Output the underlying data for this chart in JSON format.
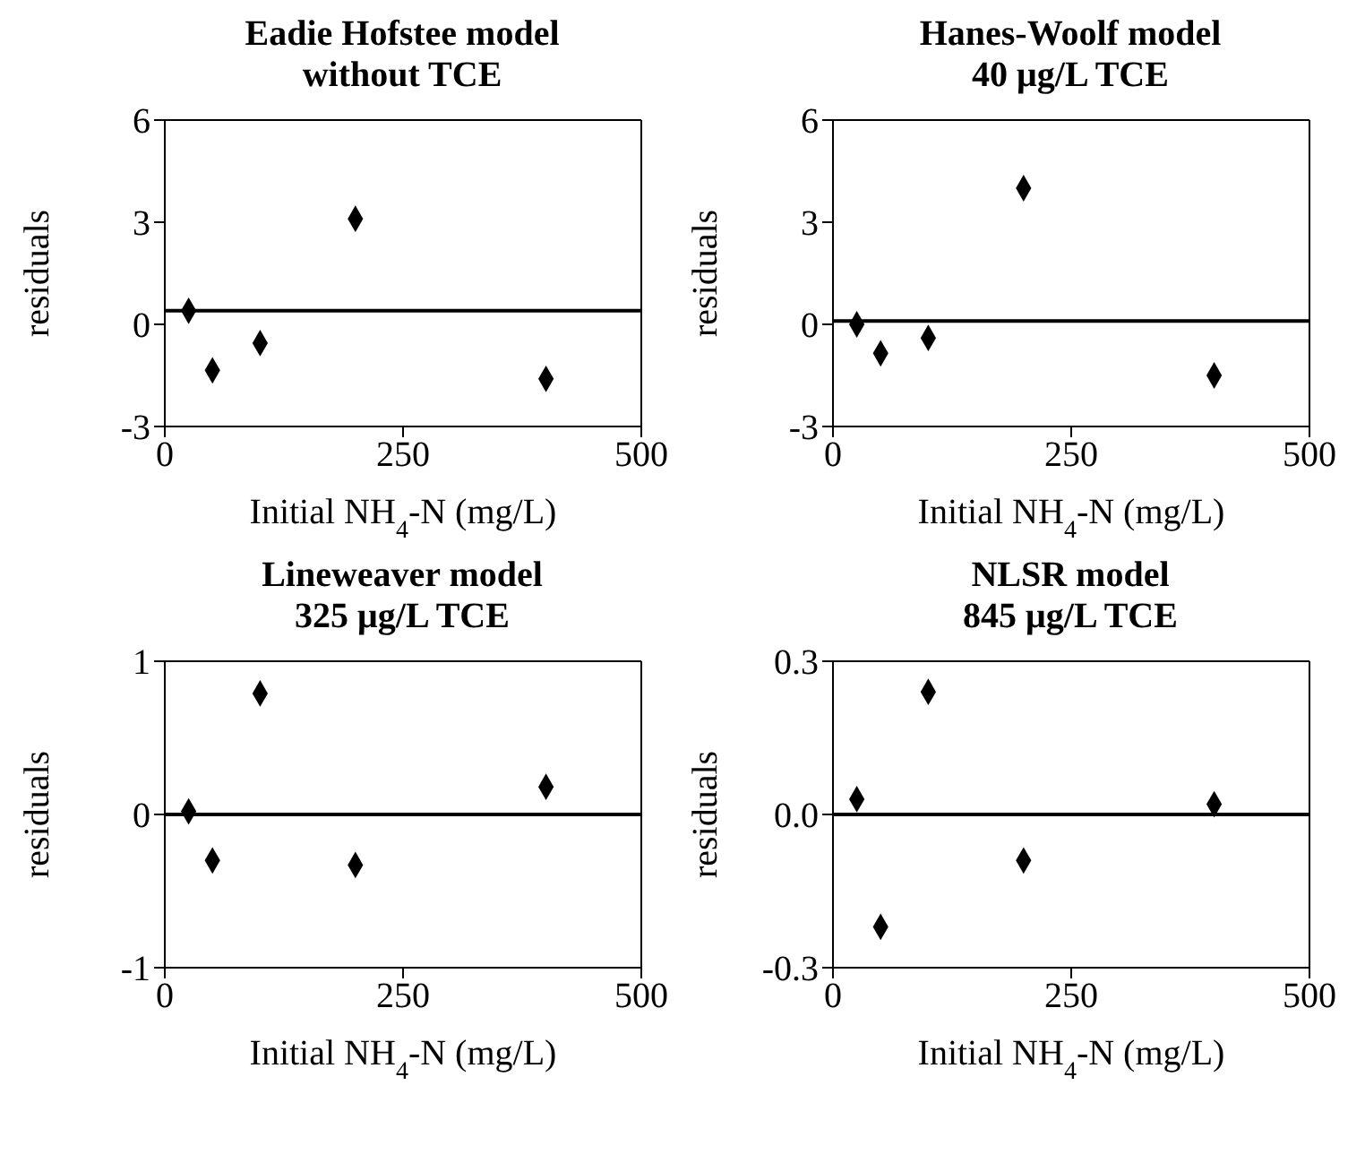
{
  "chart_data": [
    {
      "type": "scatter",
      "title": "Eadie Hofstee model",
      "subtitle": "without TCE",
      "xlabel": "Initial NH$_{4}$-N (mg/L)",
      "ylabel": "residuals",
      "x": [
        25,
        50,
        100,
        200,
        400
      ],
      "series": [
        {
          "color": "#000000",
          "values": [
            0.4,
            -1.35,
            -0.55,
            3.1,
            -1.6
          ]
        }
      ],
      "xlim": [
        0,
        500
      ],
      "xticks": [
        0,
        250,
        500
      ],
      "ylim": [
        -3,
        6
      ],
      "yticks": [
        -3,
        0,
        3,
        6
      ],
      "ref_lines": [
        {
          "axis": "y",
          "value": 0.4,
          "color": "#000000"
        }
      ],
      "marker": "diamond"
    },
    {
      "type": "scatter",
      "title": "Hanes-Woolf model",
      "subtitle": "40 μg/L TCE",
      "xlabel": "Initial NH$_{4}$-N (mg/L)",
      "ylabel": "residuals",
      "x": [
        25,
        50,
        100,
        200,
        400
      ],
      "series": [
        {
          "color": "#000000",
          "values": [
            0.0,
            -0.85,
            -0.4,
            4.0,
            -1.5
          ]
        }
      ],
      "xlim": [
        0,
        500
      ],
      "xticks": [
        0,
        250,
        500
      ],
      "ylim": [
        -3,
        6
      ],
      "yticks": [
        -3,
        0,
        3,
        6
      ],
      "ref_lines": [
        {
          "axis": "y",
          "value": 0.1,
          "color": "#000000"
        }
      ],
      "marker": "diamond"
    },
    {
      "type": "scatter",
      "title": "Lineweaver model",
      "subtitle": "325 μg/L TCE",
      "xlabel": "Initial NH$_{4}$-N (mg/L)",
      "ylabel": "residuals",
      "x": [
        25,
        50,
        100,
        200,
        400
      ],
      "series": [
        {
          "color": "#000000",
          "values": [
            0.02,
            -0.3,
            0.79,
            -0.33,
            0.18
          ]
        }
      ],
      "xlim": [
        0,
        500
      ],
      "xticks": [
        0,
        250,
        500
      ],
      "ylim": [
        -1,
        1
      ],
      "yticks": [
        -1,
        0,
        1
      ],
      "ref_lines": [
        {
          "axis": "y",
          "value": 0,
          "color": "#000000"
        }
      ],
      "marker": "diamond"
    },
    {
      "type": "scatter",
      "title": "NLSR model",
      "subtitle": "845 μg/L TCE",
      "xlabel": "Initial NH$_{4}$-N (mg/L)",
      "ylabel": "residuals",
      "x": [
        25,
        50,
        100,
        200,
        400
      ],
      "series": [
        {
          "color": "#000000",
          "values": [
            0.03,
            -0.22,
            0.24,
            -0.09,
            0.02
          ]
        }
      ],
      "xlim": [
        0,
        500
      ],
      "xticks": [
        0,
        250,
        500
      ],
      "ylim": [
        -0.3,
        0.3
      ],
      "yticks": [
        {
          "value": -0.3,
          "label": "-0.3"
        },
        {
          "value": 0,
          "label": "0.0"
        },
        {
          "value": 0.3,
          "label": "0.3"
        }
      ],
      "ref_lines": [
        {
          "axis": "y",
          "value": 0,
          "color": "#000000"
        }
      ],
      "marker": "diamond"
    }
  ]
}
